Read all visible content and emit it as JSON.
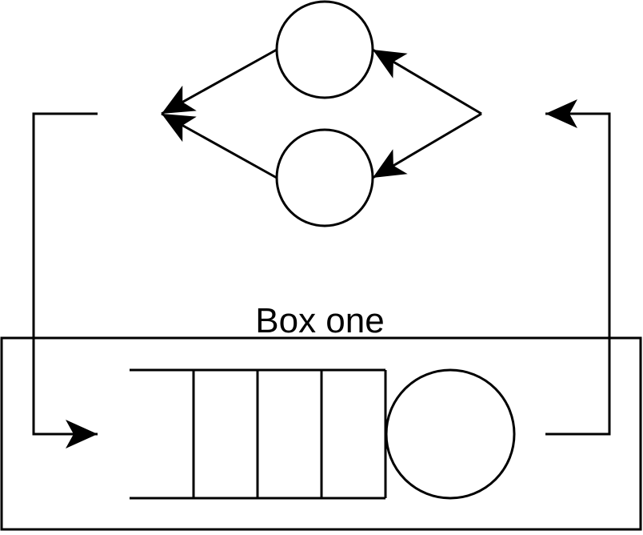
{
  "diagram": {
    "box_label": "Box one",
    "nodes": [
      {
        "id": "top-circle",
        "shape": "circle"
      },
      {
        "id": "bottom-circle",
        "shape": "circle"
      },
      {
        "id": "server-circle",
        "shape": "circle"
      }
    ],
    "queue": {
      "slots": 4
    },
    "edges": [
      {
        "from": "fork-point",
        "to": "top-circle"
      },
      {
        "from": "fork-point",
        "to": "bottom-circle"
      },
      {
        "from": "top-circle",
        "to": "join-point"
      },
      {
        "from": "bottom-circle",
        "to": "join-point"
      },
      {
        "from": "join-point",
        "to": "queue"
      },
      {
        "from": "server-circle",
        "to": "fork-point"
      }
    ],
    "colors": {
      "stroke": "#000000",
      "background": "#ffffff"
    }
  }
}
